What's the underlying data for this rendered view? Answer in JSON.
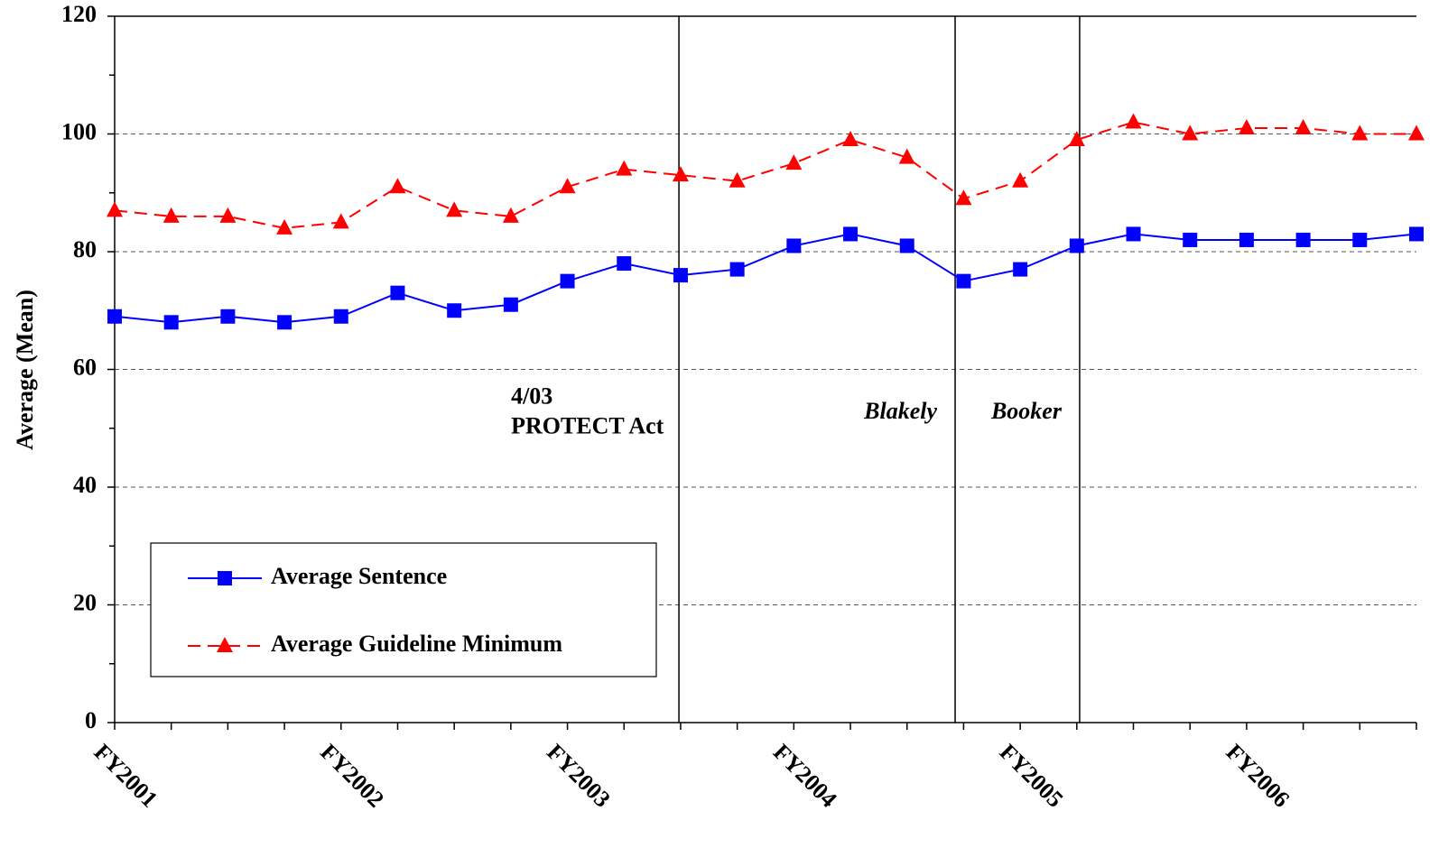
{
  "chart_data": {
    "type": "line",
    "y_label": "Average (Mean)",
    "categories": [
      "FY2001",
      null,
      null,
      null,
      "FY2002",
      null,
      null,
      null,
      "FY2003",
      null,
      null,
      null,
      "FY2004",
      null,
      null,
      null,
      "FY2005",
      null,
      null,
      null,
      "FY2006",
      null,
      null,
      null
    ],
    "series": [
      {
        "name": "Average Sentence",
        "color": "#0000ff",
        "marker": "square",
        "dash": false,
        "values": [
          69,
          68,
          69,
          68,
          69,
          73,
          70,
          71,
          75,
          78,
          76,
          77,
          81,
          83,
          81,
          75,
          77,
          81,
          83,
          82,
          82,
          82,
          82,
          83
        ]
      },
      {
        "name": "Average Guideline Minimum",
        "color": "#ff0000",
        "marker": "triangle",
        "dash": true,
        "values": [
          87,
          86,
          86,
          84,
          85,
          91,
          87,
          86,
          91,
          94,
          93,
          92,
          95,
          99,
          96,
          89,
          92,
          99,
          102,
          100,
          101,
          101,
          100,
          100
        ]
      }
    ],
    "ylim": [
      0,
      120
    ],
    "yticks": [
      0,
      20,
      40,
      60,
      80,
      100,
      120
    ],
    "grid": true,
    "legend": "lower left",
    "annotations": [
      {
        "x": 9.97,
        "lines": [
          "4/03",
          "PROTECT Act"
        ],
        "italic": false
      },
      {
        "x": 14.85,
        "lines": [
          "Blakely"
        ],
        "italic": true
      },
      {
        "x": 17.05,
        "lines": [
          "Booker"
        ],
        "italic": true
      }
    ]
  }
}
